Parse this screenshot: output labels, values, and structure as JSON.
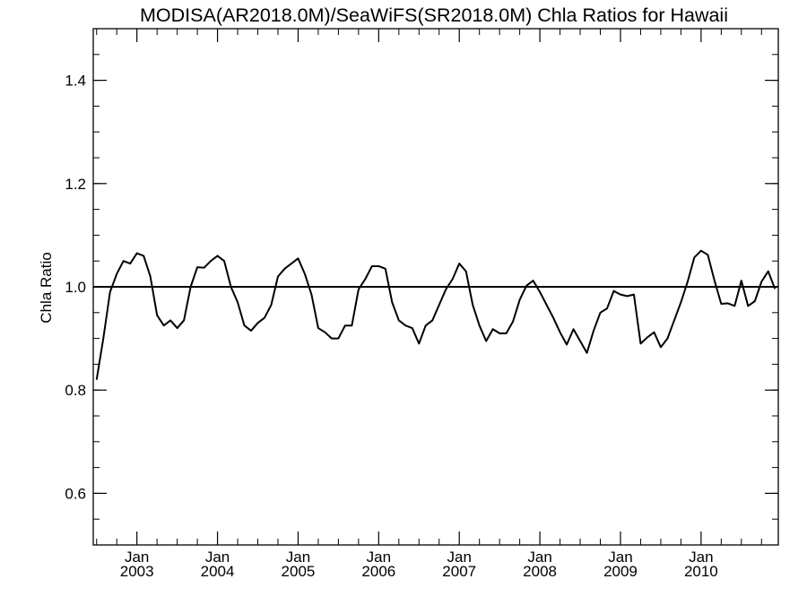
{
  "chart_data": {
    "type": "line",
    "title": "MODISA(AR2018.0M)/SeaWiFS(SR2018.0M)  Chla Ratios for Hawaii",
    "xlabel": "",
    "ylabel": "Chla Ratio",
    "ylim": [
      0.5,
      1.5
    ],
    "xlim": [
      "2002-07",
      "2010-12"
    ],
    "grid": false,
    "yticks": [
      "0.6",
      "0.8",
      "1.0",
      "1.2",
      "1.4"
    ],
    "xticks": [
      {
        "month": "Jan",
        "year": "2003",
        "date": "2003-01"
      },
      {
        "month": "Jan",
        "year": "2004",
        "date": "2004-01"
      },
      {
        "month": "Jan",
        "year": "2005",
        "date": "2005-01"
      },
      {
        "month": "Jan",
        "year": "2006",
        "date": "2006-01"
      },
      {
        "month": "Jan",
        "year": "2007",
        "date": "2007-01"
      },
      {
        "month": "Jan",
        "year": "2008",
        "date": "2008-01"
      },
      {
        "month": "Jan",
        "year": "2009",
        "date": "2009-01"
      },
      {
        "month": "Jan",
        "year": "2010",
        "date": "2010-01"
      }
    ],
    "reference_line": {
      "y": 1.0
    },
    "series": [
      {
        "x": [
          "2002-07",
          "2002-08",
          "2002-09",
          "2002-10",
          "2002-11",
          "2002-12",
          "2003-01",
          "2003-02",
          "2003-03",
          "2003-04",
          "2003-05",
          "2003-06",
          "2003-07",
          "2003-08",
          "2003-09",
          "2003-10",
          "2003-11",
          "2003-12",
          "2004-01",
          "2004-02",
          "2004-03",
          "2004-04",
          "2004-05",
          "2004-06",
          "2004-07",
          "2004-08",
          "2004-09",
          "2004-10",
          "2004-11",
          "2004-12",
          "2005-01",
          "2005-02",
          "2005-03",
          "2005-04",
          "2005-05",
          "2005-06",
          "2005-07",
          "2005-08",
          "2005-09",
          "2005-10",
          "2005-11",
          "2005-12",
          "2006-01",
          "2006-02",
          "2006-03",
          "2006-04",
          "2006-05",
          "2006-06",
          "2006-07",
          "2006-08",
          "2006-09",
          "2006-10",
          "2006-11",
          "2006-12",
          "2007-01",
          "2007-02",
          "2007-03",
          "2007-04",
          "2007-05",
          "2007-06",
          "2007-07",
          "2007-08",
          "2007-09",
          "2007-10",
          "2007-11",
          "2007-12",
          "2008-01",
          "2008-02",
          "2008-03",
          "2008-04",
          "2008-05",
          "2008-06",
          "2008-07",
          "2008-08",
          "2008-09",
          "2008-10",
          "2008-11",
          "2008-12",
          "2009-01",
          "2009-02",
          "2009-03",
          "2009-04",
          "2009-05",
          "2009-06",
          "2009-07",
          "2009-08",
          "2009-09",
          "2009-10",
          "2009-11",
          "2009-12",
          "2010-01",
          "2010-02",
          "2010-03",
          "2010-04",
          "2010-05",
          "2010-06",
          "2010-07",
          "2010-08",
          "2010-09",
          "2010-10",
          "2010-11",
          "2010-12"
        ],
        "values": [
          0.82,
          0.9,
          0.99,
          1.025,
          1.05,
          1.045,
          1.065,
          1.06,
          1.02,
          0.945,
          0.925,
          0.935,
          0.92,
          0.935,
          1.0,
          1.038,
          1.037,
          1.05,
          1.06,
          1.05,
          1.0,
          0.97,
          0.925,
          0.915,
          0.93,
          0.94,
          0.965,
          1.02,
          1.035,
          1.045,
          1.055,
          1.025,
          0.985,
          0.92,
          0.912,
          0.9,
          0.9,
          0.925,
          0.925,
          0.995,
          1.015,
          1.04,
          1.04,
          1.035,
          0.97,
          0.935,
          0.925,
          0.92,
          0.89,
          0.925,
          0.935,
          0.965,
          0.995,
          1.015,
          1.045,
          1.03,
          0.965,
          0.925,
          0.895,
          0.918,
          0.91,
          0.91,
          0.933,
          0.975,
          1.002,
          1.012,
          0.99,
          0.965,
          0.94,
          0.912,
          0.888,
          0.918,
          0.895,
          0.872,
          0.915,
          0.95,
          0.958,
          0.992,
          0.985,
          0.982,
          0.985,
          0.89,
          0.902,
          0.912,
          0.883,
          0.9,
          0.935,
          0.97,
          1.01,
          1.057,
          1.07,
          1.062,
          1.012,
          0.967,
          0.968,
          0.963,
          1.012,
          0.963,
          0.972,
          1.01,
          1.03,
          0.996
        ]
      }
    ]
  }
}
